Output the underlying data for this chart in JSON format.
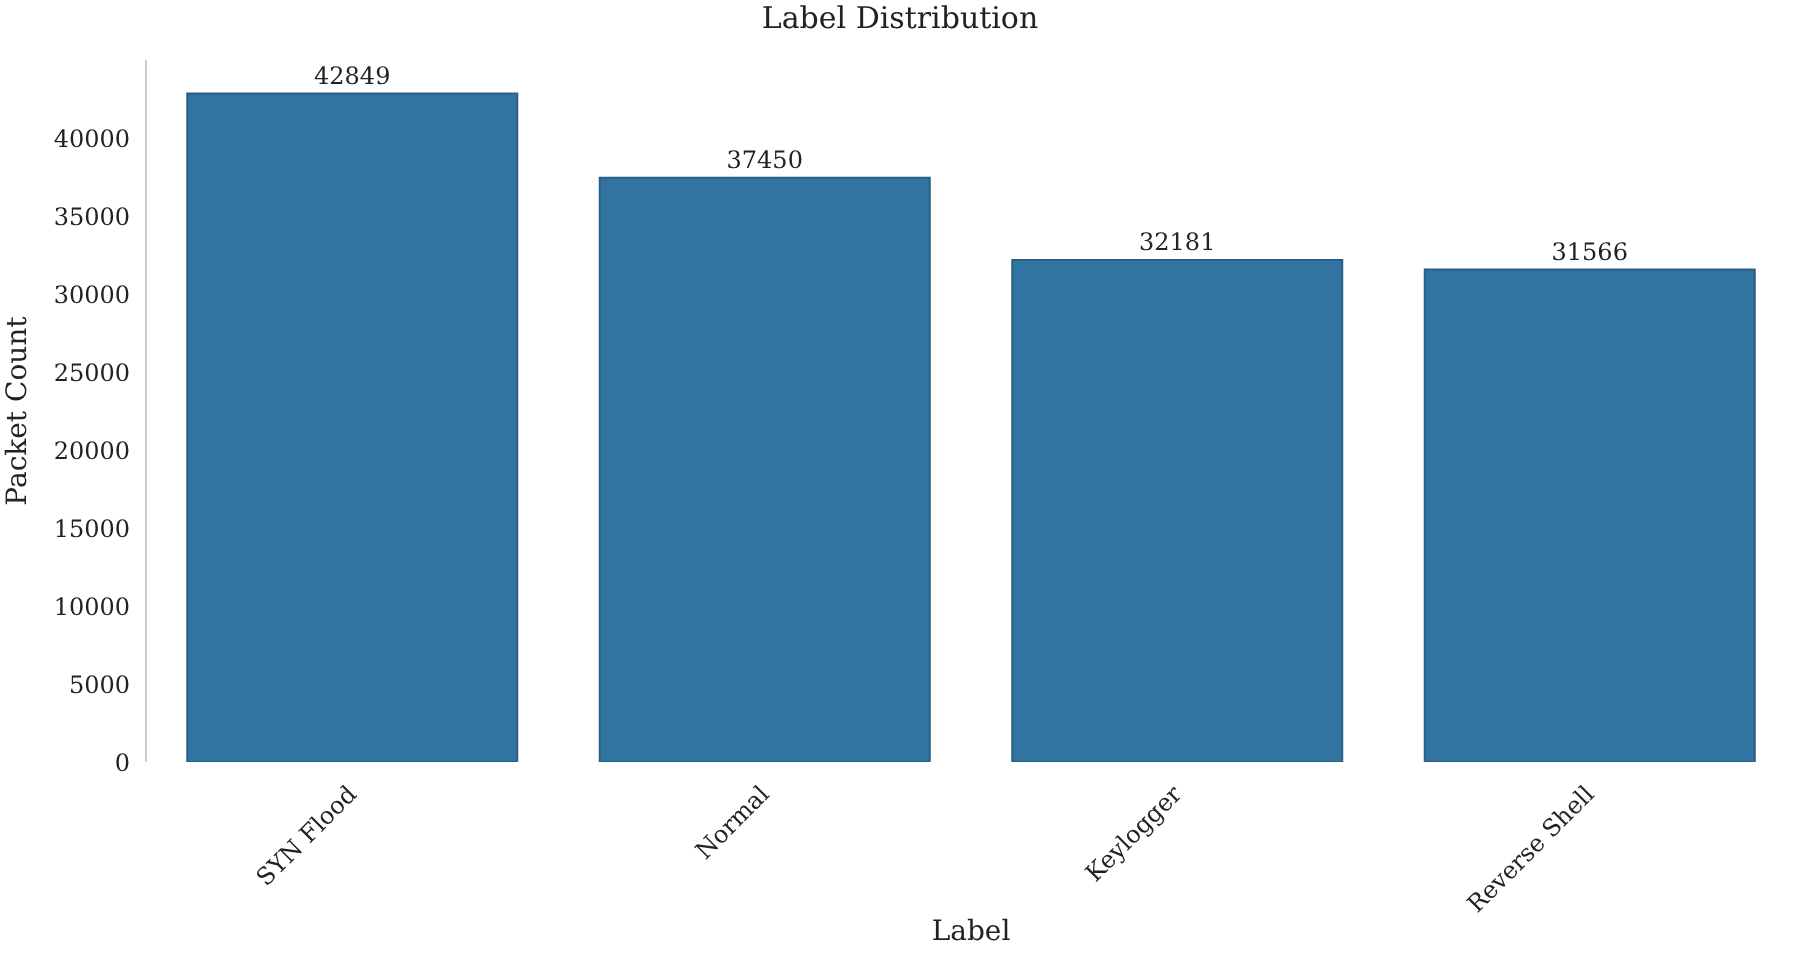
{
  "chart_data": {
    "type": "bar",
    "title": "Label Distribution",
    "xlabel": "Label",
    "ylabel": "Packet Count",
    "categories": [
      "SYN Flood",
      "Normal",
      "Keylogger",
      "Reverse Shell"
    ],
    "values": [
      42849,
      37450,
      32181,
      31566
    ],
    "color": "#3274a1",
    "ylim": [
      0,
      45000
    ],
    "yticks": [
      0,
      5000,
      10000,
      15000,
      20000,
      25000,
      30000,
      35000,
      40000
    ],
    "data_labels": true,
    "grid": false,
    "legend": false
  }
}
